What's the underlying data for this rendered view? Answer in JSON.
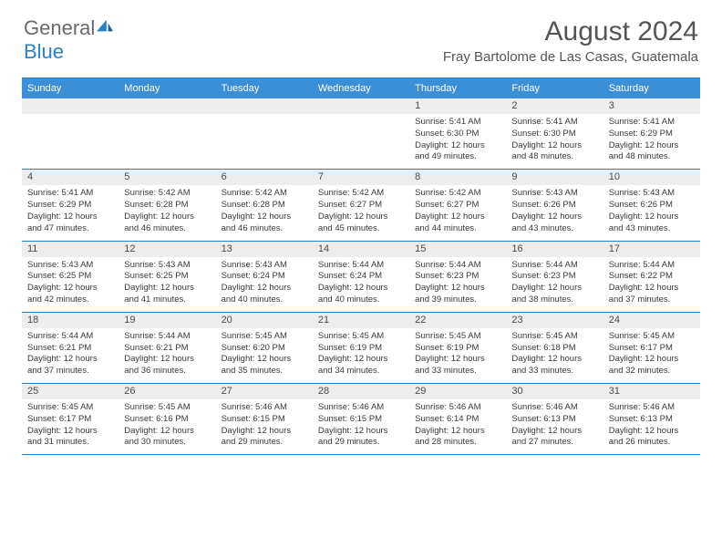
{
  "brand": {
    "part1": "General",
    "part2": "Blue"
  },
  "title": "August 2024",
  "location": "Fray Bartolome de Las Casas, Guatemala",
  "day_headers": [
    "Sunday",
    "Monday",
    "Tuesday",
    "Wednesday",
    "Thursday",
    "Friday",
    "Saturday"
  ],
  "colors": {
    "header_bg": "#3b8fd6",
    "header_text": "#ffffff",
    "strip_bg": "#ededed",
    "divider": "#2a7fc9",
    "text": "#333333"
  },
  "weeks": [
    [
      {
        "n": "",
        "sunrise": "",
        "sunset": "",
        "daylight": ""
      },
      {
        "n": "",
        "sunrise": "",
        "sunset": "",
        "daylight": ""
      },
      {
        "n": "",
        "sunrise": "",
        "sunset": "",
        "daylight": ""
      },
      {
        "n": "",
        "sunrise": "",
        "sunset": "",
        "daylight": ""
      },
      {
        "n": "1",
        "sunrise": "Sunrise: 5:41 AM",
        "sunset": "Sunset: 6:30 PM",
        "daylight": "Daylight: 12 hours and 49 minutes."
      },
      {
        "n": "2",
        "sunrise": "Sunrise: 5:41 AM",
        "sunset": "Sunset: 6:30 PM",
        "daylight": "Daylight: 12 hours and 48 minutes."
      },
      {
        "n": "3",
        "sunrise": "Sunrise: 5:41 AM",
        "sunset": "Sunset: 6:29 PM",
        "daylight": "Daylight: 12 hours and 48 minutes."
      }
    ],
    [
      {
        "n": "4",
        "sunrise": "Sunrise: 5:41 AM",
        "sunset": "Sunset: 6:29 PM",
        "daylight": "Daylight: 12 hours and 47 minutes."
      },
      {
        "n": "5",
        "sunrise": "Sunrise: 5:42 AM",
        "sunset": "Sunset: 6:28 PM",
        "daylight": "Daylight: 12 hours and 46 minutes."
      },
      {
        "n": "6",
        "sunrise": "Sunrise: 5:42 AM",
        "sunset": "Sunset: 6:28 PM",
        "daylight": "Daylight: 12 hours and 46 minutes."
      },
      {
        "n": "7",
        "sunrise": "Sunrise: 5:42 AM",
        "sunset": "Sunset: 6:27 PM",
        "daylight": "Daylight: 12 hours and 45 minutes."
      },
      {
        "n": "8",
        "sunrise": "Sunrise: 5:42 AM",
        "sunset": "Sunset: 6:27 PM",
        "daylight": "Daylight: 12 hours and 44 minutes."
      },
      {
        "n": "9",
        "sunrise": "Sunrise: 5:43 AM",
        "sunset": "Sunset: 6:26 PM",
        "daylight": "Daylight: 12 hours and 43 minutes."
      },
      {
        "n": "10",
        "sunrise": "Sunrise: 5:43 AM",
        "sunset": "Sunset: 6:26 PM",
        "daylight": "Daylight: 12 hours and 43 minutes."
      }
    ],
    [
      {
        "n": "11",
        "sunrise": "Sunrise: 5:43 AM",
        "sunset": "Sunset: 6:25 PM",
        "daylight": "Daylight: 12 hours and 42 minutes."
      },
      {
        "n": "12",
        "sunrise": "Sunrise: 5:43 AM",
        "sunset": "Sunset: 6:25 PM",
        "daylight": "Daylight: 12 hours and 41 minutes."
      },
      {
        "n": "13",
        "sunrise": "Sunrise: 5:43 AM",
        "sunset": "Sunset: 6:24 PM",
        "daylight": "Daylight: 12 hours and 40 minutes."
      },
      {
        "n": "14",
        "sunrise": "Sunrise: 5:44 AM",
        "sunset": "Sunset: 6:24 PM",
        "daylight": "Daylight: 12 hours and 40 minutes."
      },
      {
        "n": "15",
        "sunrise": "Sunrise: 5:44 AM",
        "sunset": "Sunset: 6:23 PM",
        "daylight": "Daylight: 12 hours and 39 minutes."
      },
      {
        "n": "16",
        "sunrise": "Sunrise: 5:44 AM",
        "sunset": "Sunset: 6:23 PM",
        "daylight": "Daylight: 12 hours and 38 minutes."
      },
      {
        "n": "17",
        "sunrise": "Sunrise: 5:44 AM",
        "sunset": "Sunset: 6:22 PM",
        "daylight": "Daylight: 12 hours and 37 minutes."
      }
    ],
    [
      {
        "n": "18",
        "sunrise": "Sunrise: 5:44 AM",
        "sunset": "Sunset: 6:21 PM",
        "daylight": "Daylight: 12 hours and 37 minutes."
      },
      {
        "n": "19",
        "sunrise": "Sunrise: 5:44 AM",
        "sunset": "Sunset: 6:21 PM",
        "daylight": "Daylight: 12 hours and 36 minutes."
      },
      {
        "n": "20",
        "sunrise": "Sunrise: 5:45 AM",
        "sunset": "Sunset: 6:20 PM",
        "daylight": "Daylight: 12 hours and 35 minutes."
      },
      {
        "n": "21",
        "sunrise": "Sunrise: 5:45 AM",
        "sunset": "Sunset: 6:19 PM",
        "daylight": "Daylight: 12 hours and 34 minutes."
      },
      {
        "n": "22",
        "sunrise": "Sunrise: 5:45 AM",
        "sunset": "Sunset: 6:19 PM",
        "daylight": "Daylight: 12 hours and 33 minutes."
      },
      {
        "n": "23",
        "sunrise": "Sunrise: 5:45 AM",
        "sunset": "Sunset: 6:18 PM",
        "daylight": "Daylight: 12 hours and 33 minutes."
      },
      {
        "n": "24",
        "sunrise": "Sunrise: 5:45 AM",
        "sunset": "Sunset: 6:17 PM",
        "daylight": "Daylight: 12 hours and 32 minutes."
      }
    ],
    [
      {
        "n": "25",
        "sunrise": "Sunrise: 5:45 AM",
        "sunset": "Sunset: 6:17 PM",
        "daylight": "Daylight: 12 hours and 31 minutes."
      },
      {
        "n": "26",
        "sunrise": "Sunrise: 5:45 AM",
        "sunset": "Sunset: 6:16 PM",
        "daylight": "Daylight: 12 hours and 30 minutes."
      },
      {
        "n": "27",
        "sunrise": "Sunrise: 5:46 AM",
        "sunset": "Sunset: 6:15 PM",
        "daylight": "Daylight: 12 hours and 29 minutes."
      },
      {
        "n": "28",
        "sunrise": "Sunrise: 5:46 AM",
        "sunset": "Sunset: 6:15 PM",
        "daylight": "Daylight: 12 hours and 29 minutes."
      },
      {
        "n": "29",
        "sunrise": "Sunrise: 5:46 AM",
        "sunset": "Sunset: 6:14 PM",
        "daylight": "Daylight: 12 hours and 28 minutes."
      },
      {
        "n": "30",
        "sunrise": "Sunrise: 5:46 AM",
        "sunset": "Sunset: 6:13 PM",
        "daylight": "Daylight: 12 hours and 27 minutes."
      },
      {
        "n": "31",
        "sunrise": "Sunrise: 5:46 AM",
        "sunset": "Sunset: 6:13 PM",
        "daylight": "Daylight: 12 hours and 26 minutes."
      }
    ]
  ]
}
